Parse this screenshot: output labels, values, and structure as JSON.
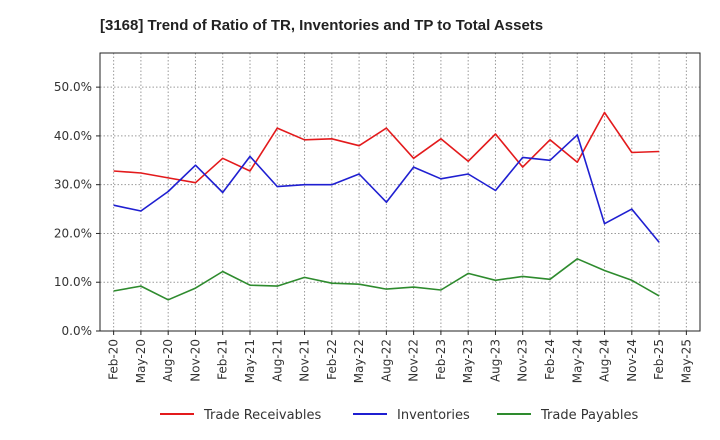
{
  "chart_data": {
    "type": "line",
    "title": "[3168]  Trend of Ratio of TR, Inventories and TP to Total Assets",
    "xlabel": "",
    "ylabel": "",
    "ylim": [
      0,
      57
    ],
    "yticks": [
      0,
      10,
      20,
      30,
      40,
      50
    ],
    "ytick_labels": [
      "0.0%",
      "10.0%",
      "20.0%",
      "30.0%",
      "40.0%",
      "50.0%"
    ],
    "x_labels": [
      "Feb-20",
      "May-20",
      "Aug-20",
      "Nov-20",
      "Feb-21",
      "May-21",
      "Aug-21",
      "Nov-21",
      "Feb-22",
      "May-22",
      "Aug-22",
      "Nov-22",
      "Feb-23",
      "May-23",
      "Aug-23",
      "Nov-23",
      "Feb-24",
      "May-24",
      "Aug-24",
      "Nov-24",
      "Feb-25",
      "May-25"
    ],
    "grid": true,
    "legend_position": "bottom",
    "series": [
      {
        "name": "Trade Receivables",
        "color": "#e31a1c",
        "values": [
          32.8,
          32.4,
          31.4,
          30.4,
          35.4,
          32.8,
          41.6,
          39.2,
          39.4,
          38.0,
          41.6,
          35.4,
          39.4,
          34.8,
          40.4,
          33.6,
          39.2,
          34.6,
          44.8,
          36.6,
          36.8,
          null
        ]
      },
      {
        "name": "Inventories",
        "color": "#1f1fd1",
        "values": [
          25.8,
          24.6,
          28.6,
          34.0,
          28.4,
          35.8,
          29.6,
          30.0,
          30.0,
          32.2,
          26.4,
          33.6,
          31.2,
          32.2,
          28.8,
          35.6,
          35.0,
          40.2,
          22.0,
          25.0,
          18.2,
          null
        ]
      },
      {
        "name": "Trade Payables",
        "color": "#2e8b2e",
        "values": [
          8.2,
          9.2,
          6.4,
          8.8,
          12.2,
          9.4,
          9.2,
          11.0,
          9.8,
          9.6,
          8.6,
          9.0,
          8.4,
          11.8,
          10.4,
          11.2,
          10.6,
          14.8,
          12.4,
          10.4,
          7.2,
          null
        ]
      }
    ]
  }
}
